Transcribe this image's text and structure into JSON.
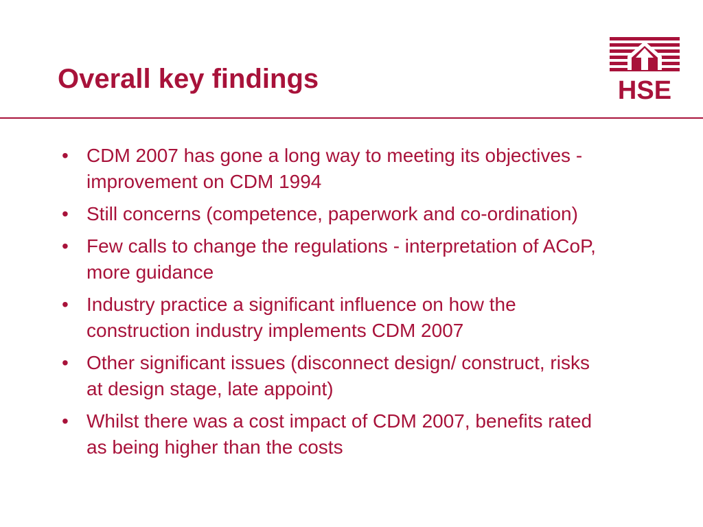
{
  "slide": {
    "title": "Overall key findings",
    "logo_text": "HSE",
    "bullet_glyph": "•",
    "bullets": [
      "CDM 2007 has gone a long way to meeting its objectives - improvement on CDM 1994",
      "Still concerns (competence, paperwork and co-ordination)",
      "Few calls to change the regulations - interpretation of ACoP, more guidance",
      "Industry practice a significant influence on how the construction industry implements CDM 2007",
      "Other significant issues (disconnect design/ construct, risks at design stage, late appoint)",
      "Whilst there was a cost impact of CDM 2007, benefits rated as being higher than the costs"
    ]
  },
  "colors": {
    "accent": "#a8123a",
    "background": "#ffffff"
  },
  "icons": {
    "logo": "hse-house-logo-icon"
  }
}
